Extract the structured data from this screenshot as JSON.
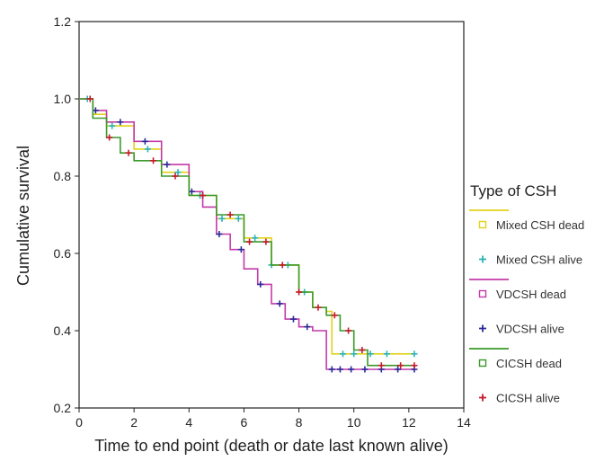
{
  "chart_data": {
    "type": "line",
    "subtype": "kaplan-meier",
    "xlabel": "Time to end point (death or date last known alive)",
    "ylabel": "Cumulative survival",
    "xlim": [
      0,
      14
    ],
    "ylim": [
      0.2,
      1.2
    ],
    "xticks": [
      0,
      2,
      4,
      6,
      8,
      10,
      12,
      14
    ],
    "yticks": [
      0.2,
      0.4,
      0.6,
      0.8,
      1.0,
      1.2
    ],
    "xtick_labels": [
      "0",
      "2",
      "4",
      "6",
      "8",
      "10",
      "12",
      "14"
    ],
    "ytick_labels": [
      "0.2",
      "0.4",
      "0.6",
      "0.8",
      "1.0",
      "1.2"
    ],
    "grid": false,
    "legend": {
      "title": "Type of CSH",
      "placement": "right",
      "entries": [
        {
          "label": "Mixed CSH dead",
          "kind": "line",
          "color": "#e0d21a"
        },
        {
          "label": "Mixed CSH alive",
          "kind": "censor",
          "color": "#2ab3b8"
        },
        {
          "label": "VDCSH dead",
          "kind": "line",
          "color": "#c43aa8"
        },
        {
          "label": "VDCSH alive",
          "kind": "censor",
          "color": "#2a2a9a"
        },
        {
          "label": "CICSH dead",
          "kind": "line",
          "color": "#3a9a2a"
        },
        {
          "label": "CICSH alive",
          "kind": "censor",
          "color": "#c41a2a"
        }
      ]
    },
    "series": [
      {
        "group": "Mixed CSH",
        "line_color": "#e0d21a",
        "censor_color": "#2ab3b8",
        "x": [
          0,
          0.5,
          1,
          2,
          3,
          4,
          5,
          6,
          7,
          8,
          8.5,
          9.0,
          9.2,
          10.2,
          10.8,
          12.2
        ],
        "y": [
          1.0,
          0.96,
          0.93,
          0.87,
          0.81,
          0.75,
          0.69,
          0.64,
          0.57,
          0.5,
          0.46,
          0.45,
          0.34,
          0.34,
          0.34,
          0.34
        ],
        "censored_x": [
          0.3,
          1.2,
          2.5,
          3.6,
          4.4,
          5.2,
          5.8,
          6.4,
          7.0,
          7.6,
          8.2,
          9.6,
          10.0,
          10.6,
          11.2,
          12.2
        ]
      },
      {
        "group": "VDCSH",
        "line_color": "#c43aa8",
        "censor_color": "#2a2a9a",
        "x": [
          0,
          0.5,
          1,
          2,
          3,
          4,
          4.5,
          5,
          5.5,
          6,
          6.5,
          7,
          7.5,
          8,
          8.5,
          9.0,
          9.5,
          12.2
        ],
        "y": [
          1.0,
          0.97,
          0.94,
          0.89,
          0.83,
          0.76,
          0.72,
          0.65,
          0.61,
          0.56,
          0.52,
          0.47,
          0.43,
          0.41,
          0.4,
          0.3,
          0.3,
          0.3
        ],
        "censored_x": [
          0.6,
          1.5,
          2.4,
          3.2,
          4.1,
          5.1,
          5.9,
          6.6,
          7.3,
          7.8,
          8.3,
          9.2,
          9.5,
          9.9,
          10.4,
          11.0,
          11.6,
          12.2
        ]
      },
      {
        "group": "CICSH",
        "line_color": "#3a9a2a",
        "censor_color": "#c41a2a",
        "x": [
          0,
          0.5,
          1,
          1.5,
          2,
          3,
          4,
          5,
          6,
          7,
          8,
          8.5,
          9.0,
          9.5,
          10.0,
          10.5,
          12.2
        ],
        "y": [
          1.0,
          0.95,
          0.9,
          0.86,
          0.84,
          0.8,
          0.75,
          0.7,
          0.63,
          0.57,
          0.5,
          0.46,
          0.44,
          0.4,
          0.35,
          0.31,
          0.31
        ],
        "censored_x": [
          0.4,
          1.1,
          1.8,
          2.7,
          3.5,
          4.5,
          5.5,
          6.2,
          6.8,
          7.4,
          8.0,
          8.7,
          9.3,
          9.8,
          10.3,
          11.0,
          11.7,
          12.2
        ]
      }
    ]
  }
}
